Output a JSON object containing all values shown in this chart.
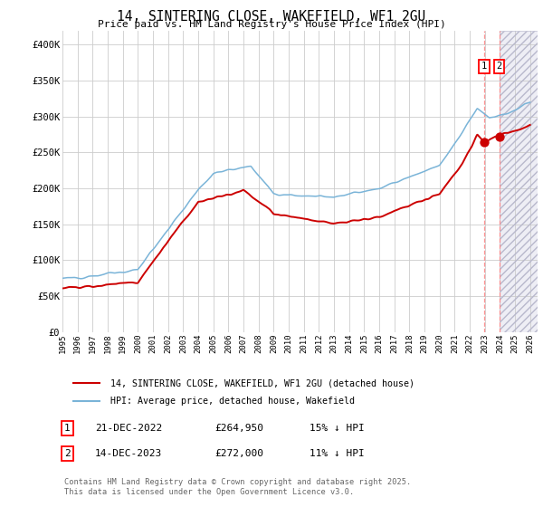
{
  "title": "14, SINTERING CLOSE, WAKEFIELD, WF1 2GU",
  "subtitle": "Price paid vs. HM Land Registry's House Price Index (HPI)",
  "hpi_color": "#7ab4d8",
  "price_color": "#cc0000",
  "background_color": "#ffffff",
  "grid_color": "#cccccc",
  "ylim": [
    0,
    420000
  ],
  "yticks": [
    0,
    50000,
    100000,
    150000,
    200000,
    250000,
    300000,
    350000,
    400000
  ],
  "ytick_labels": [
    "£0",
    "£50K",
    "£100K",
    "£150K",
    "£200K",
    "£250K",
    "£300K",
    "£350K",
    "£400K"
  ],
  "xlim_start": 1995.0,
  "xlim_end": 2026.5,
  "xticks": [
    1995,
    1996,
    1997,
    1998,
    1999,
    2000,
    2001,
    2002,
    2003,
    2004,
    2005,
    2006,
    2007,
    2008,
    2009,
    2010,
    2011,
    2012,
    2013,
    2014,
    2015,
    2016,
    2017,
    2018,
    2019,
    2020,
    2021,
    2022,
    2023,
    2024,
    2025,
    2026
  ],
  "sale1_date": 2022.97,
  "sale1_price": 264950,
  "sale1_label": "1",
  "sale2_date": 2023.96,
  "sale2_price": 272000,
  "sale2_label": "2",
  "legend_line1": "14, SINTERING CLOSE, WAKEFIELD, WF1 2GU (detached house)",
  "legend_line2": "HPI: Average price, detached house, Wakefield",
  "annotation1_date": "21-DEC-2022",
  "annotation1_price": "£264,950",
  "annotation1_hpi": "15% ↓ HPI",
  "annotation2_date": "14-DEC-2023",
  "annotation2_price": "£272,000",
  "annotation2_hpi": "11% ↓ HPI",
  "footer": "Contains HM Land Registry data © Crown copyright and database right 2025.\nThis data is licensed under the Open Government Licence v3.0.",
  "hatch_region_color": "#eeeef5"
}
